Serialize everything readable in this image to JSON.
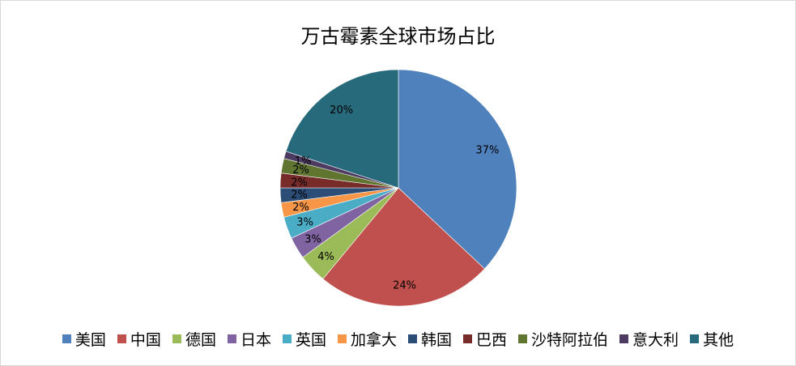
{
  "chart_data": {
    "type": "pie",
    "title": "万古霉素全球市场占比",
    "categories": [
      "美国",
      "中国",
      "德国",
      "日本",
      "英国",
      "加拿大",
      "韩国",
      "巴西",
      "沙特阿拉伯",
      "意大利",
      "其他"
    ],
    "values": [
      37,
      24,
      4,
      3,
      3,
      2,
      2,
      2,
      2,
      1,
      20
    ],
    "labels": [
      "37%",
      "24%",
      "4%",
      "3%",
      "3%",
      "2%",
      "2%",
      "2%",
      "2%",
      "1%",
      "20%"
    ],
    "colors": [
      "#4F81BD",
      "#C0504D",
      "#9BBB59",
      "#8064A2",
      "#4BACC6",
      "#F79646",
      "#2C4D75",
      "#772C2A",
      "#5F7530",
      "#4D3B62",
      "#276A7C"
    ],
    "start": "top",
    "direction": "clockwise",
    "legend_position": "bottom"
  }
}
